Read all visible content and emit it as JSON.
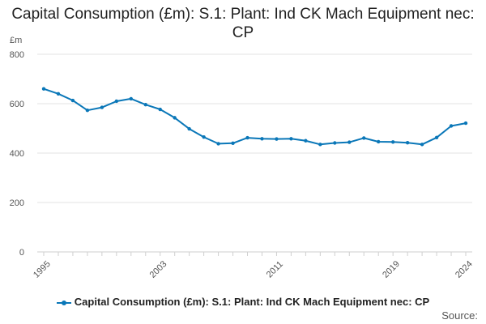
{
  "chart_data": {
    "type": "line",
    "title": "Capital Consumption (£m): S.1: Plant: Ind CK Mach Equipment nec: CP",
    "ylabel": "£m",
    "xlabel": "",
    "ylim": [
      0,
      800
    ],
    "y_ticks": [
      0,
      200,
      400,
      600,
      800
    ],
    "x_tick_labels": [
      "1995",
      "2003",
      "2011",
      "2019",
      "2024"
    ],
    "grid": true,
    "legend_position": "bottom",
    "series": [
      {
        "name": "Capital Consumption (£m): S.1: Plant: Ind CK Mach Equipment nec: CP",
        "color": "#0a77b8",
        "x": [
          1995,
          1996,
          1997,
          1998,
          1999,
          2000,
          2001,
          2002,
          2003,
          2004,
          2005,
          2006,
          2007,
          2008,
          2009,
          2010,
          2011,
          2012,
          2013,
          2014,
          2015,
          2016,
          2017,
          2018,
          2019,
          2020,
          2021,
          2022,
          2023,
          2024
        ],
        "values": [
          660,
          640,
          613,
          573,
          585,
          610,
          620,
          596,
          577,
          543,
          498,
          465,
          438,
          440,
          462,
          458,
          457,
          458,
          450,
          435,
          441,
          444,
          461,
          446,
          445,
          442,
          435,
          463,
          510,
          521
        ]
      }
    ]
  },
  "source_label": "Source:"
}
